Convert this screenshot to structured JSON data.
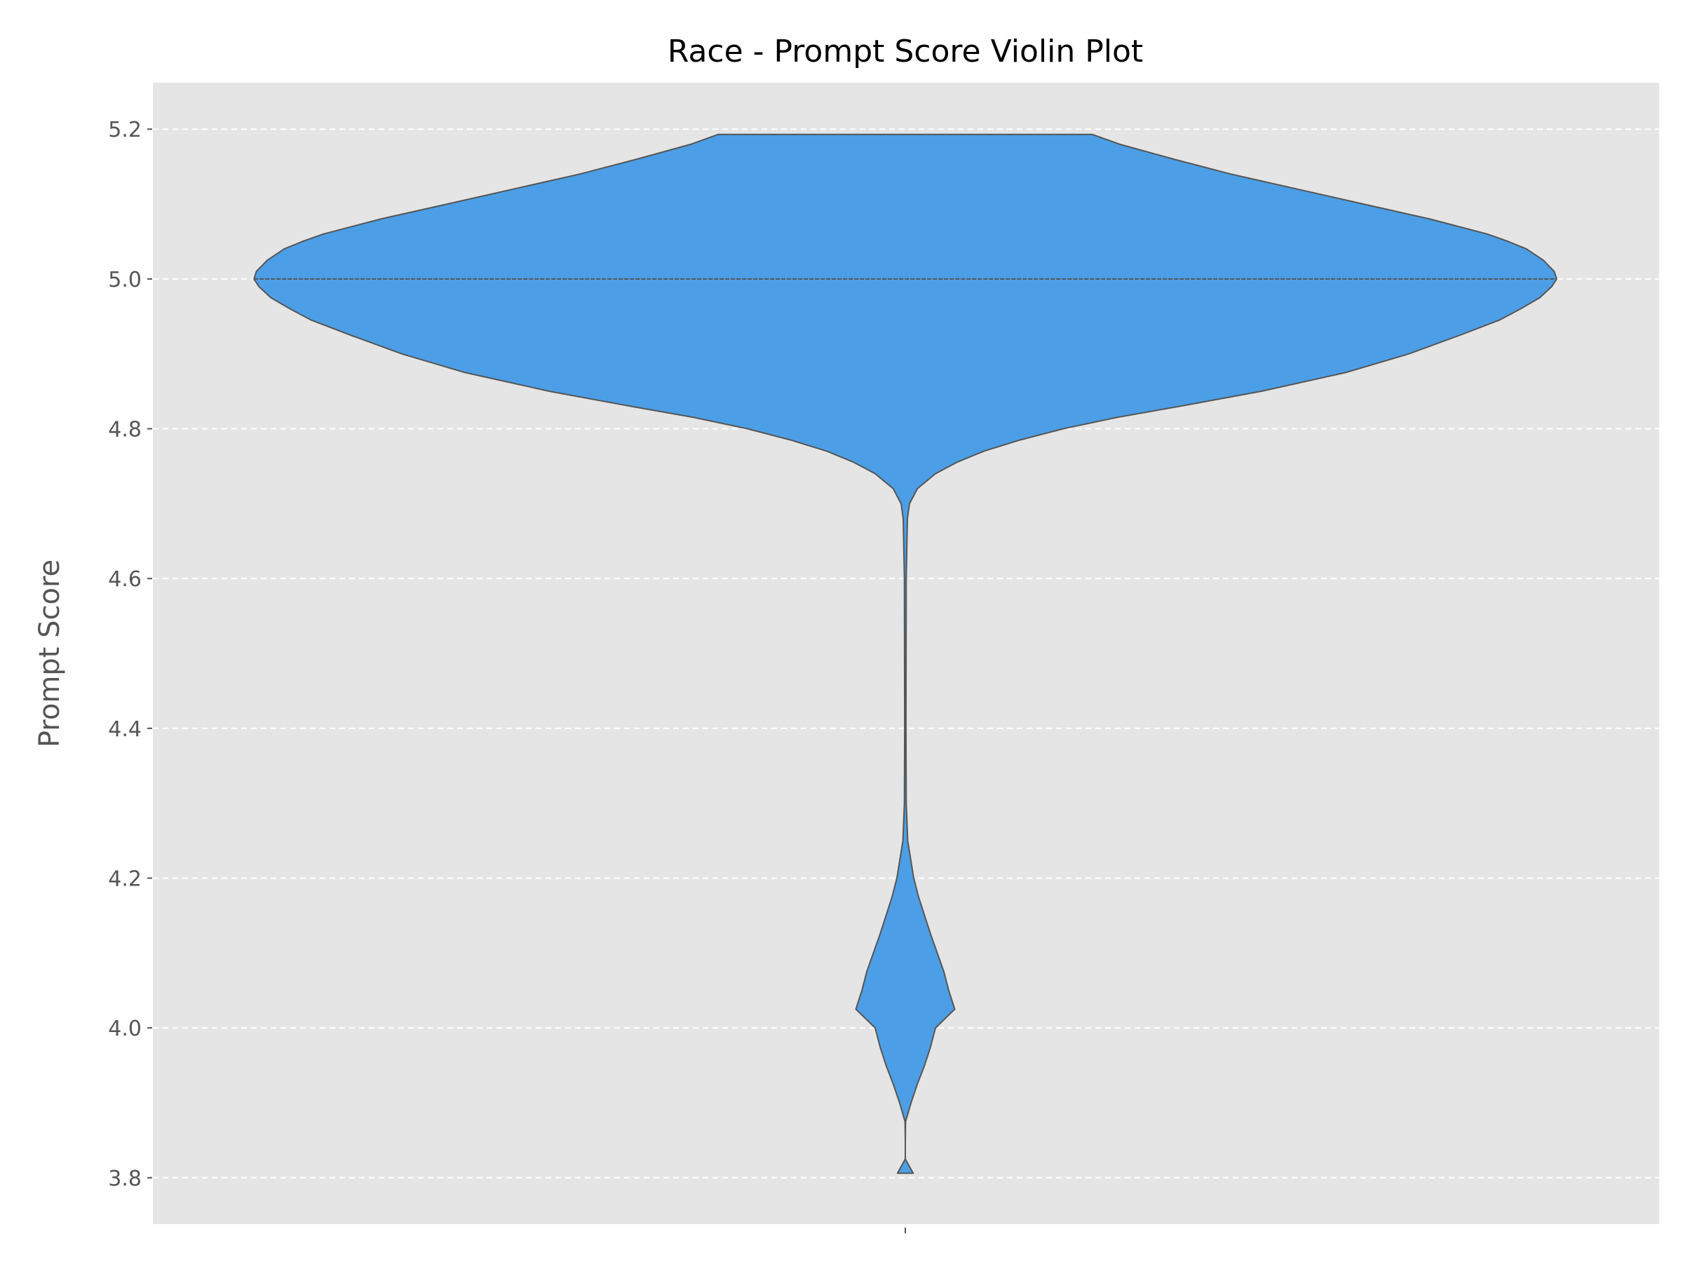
{
  "chart_data": {
    "type": "violin",
    "title": "Race - Prompt Score Violin Plot",
    "xlabel": "",
    "ylabel": "Prompt Score",
    "ylim": [
      3.738,
      5.262
    ],
    "yticks": [
      "3.8",
      "4.0",
      "4.2",
      "4.4",
      "4.6",
      "4.8",
      "5.0",
      "5.2"
    ],
    "grid": "horizontal-dashed",
    "legend": "none",
    "colors": {
      "fill": "#4c9fe6",
      "edge": "#555555",
      "background": "#e5e5e5",
      "grid": "#ffffff",
      "text": "#555555"
    },
    "series": [
      {
        "median": 5.0,
        "range": [
          3.806,
          5.193
        ],
        "density": [
          [
            5.193,
            0.31
          ],
          [
            5.18,
            0.355
          ],
          [
            5.16,
            0.445
          ],
          [
            5.14,
            0.54
          ],
          [
            5.12,
            0.65
          ],
          [
            5.1,
            0.76
          ],
          [
            5.08,
            0.87
          ],
          [
            5.06,
            0.965
          ],
          [
            5.05,
            1.0
          ],
          [
            5.04,
            1.03
          ],
          [
            5.025,
            1.058
          ],
          [
            5.01,
            1.076
          ],
          [
            5.0,
            1.08
          ],
          [
            4.99,
            1.072
          ],
          [
            4.975,
            1.052
          ],
          [
            4.96,
            1.02
          ],
          [
            4.945,
            0.985
          ],
          [
            4.925,
            0.92
          ],
          [
            4.9,
            0.835
          ],
          [
            4.875,
            0.73
          ],
          [
            4.85,
            0.59
          ],
          [
            4.83,
            0.455
          ],
          [
            4.815,
            0.35
          ],
          [
            4.8,
            0.262
          ],
          [
            4.785,
            0.19
          ],
          [
            4.77,
            0.13
          ],
          [
            4.755,
            0.085
          ],
          [
            4.74,
            0.05
          ],
          [
            4.72,
            0.02
          ],
          [
            4.7,
            0.007
          ],
          [
            4.68,
            0.0035
          ],
          [
            4.6,
            0.0015
          ],
          [
            4.4,
            0.001
          ],
          [
            4.3,
            0.0015
          ],
          [
            4.25,
            0.004
          ],
          [
            4.2,
            0.014
          ],
          [
            4.175,
            0.022
          ],
          [
            4.15,
            0.032
          ],
          [
            4.125,
            0.042
          ],
          [
            4.1,
            0.053
          ],
          [
            4.075,
            0.064
          ],
          [
            4.05,
            0.072
          ],
          [
            4.025,
            0.082
          ],
          [
            4.0,
            0.05
          ],
          [
            3.975,
            0.042
          ],
          [
            3.95,
            0.032
          ],
          [
            3.925,
            0.02
          ],
          [
            3.9,
            0.0095
          ],
          [
            3.875,
            0.0005
          ],
          [
            3.85,
            -0.0085
          ],
          [
            3.825,
            0.0
          ],
          [
            3.806,
            0.013
          ]
        ]
      }
    ]
  }
}
